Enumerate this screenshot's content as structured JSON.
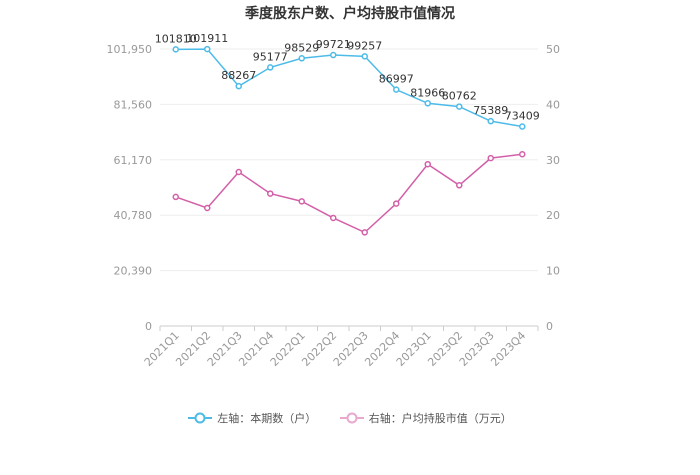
{
  "title": "季度股东户数、户均持股市值情况",
  "chart_data": {
    "type": "line",
    "categories": [
      "2021Q1",
      "2021Q2",
      "2021Q3",
      "2021Q4",
      "2022Q1",
      "2022Q2",
      "2022Q3",
      "2022Q4",
      "2023Q1",
      "2023Q2",
      "2023Q3",
      "2023Q4"
    ],
    "left_axis": {
      "ticks": [
        "0",
        "20,390",
        "40,780",
        "61,170",
        "81,560",
        "101,950"
      ],
      "max": 101950
    },
    "right_axis": {
      "ticks": [
        "0",
        "10",
        "20",
        "30",
        "40",
        "50"
      ],
      "max": 50
    },
    "series": [
      {
        "name": "左轴：本期数（户）",
        "axis": "left",
        "color": "#4dbbe8",
        "values": [
          101810,
          101911,
          88267,
          95177,
          98529,
          99721,
          99257,
          86997,
          81966,
          80762,
          75389,
          73409
        ],
        "labels": [
          "101810",
          "101911",
          "88267",
          "95177",
          "98529",
          "99721",
          "99257",
          "86997",
          "81966",
          "80762",
          "75389",
          "73409"
        ]
      },
      {
        "name": "右轴：户均持股市值（万元）",
        "axis": "right",
        "color": "#d35fa8",
        "values": [
          23.3,
          21.3,
          27.8,
          23.9,
          22.5,
          19.5,
          16.9,
          22.1,
          29.2,
          25.4,
          30.3,
          31.0
        ]
      }
    ]
  }
}
